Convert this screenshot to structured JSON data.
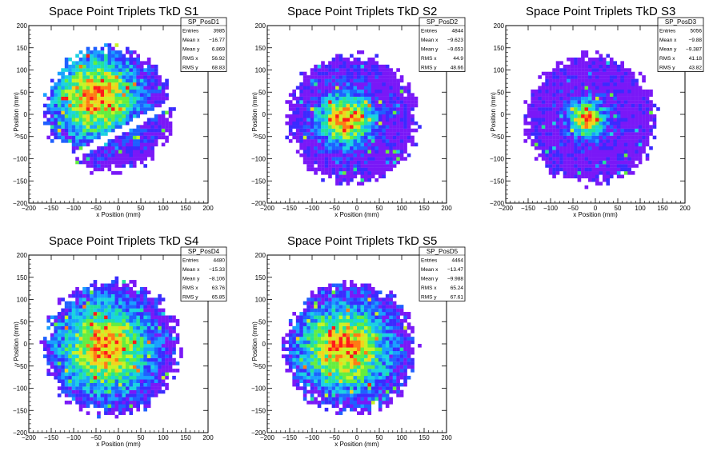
{
  "page": {
    "background": "#ffffff",
    "palette": [
      "#7a18f7",
      "#3a2bff",
      "#1f60ff",
      "#1aa0ff",
      "#1bd3e0",
      "#22e29b",
      "#63ee3f",
      "#c7f326",
      "#f1d41c",
      "#ff7a14",
      "#ff1a1a"
    ]
  },
  "chart_data": [
    {
      "type": "heatmap",
      "title": "Space Point Triplets TkD S1",
      "xlabel": "x Position (mm)",
      "ylabel": "y Position (mm)",
      "xlim": [
        -200,
        200
      ],
      "ylim": [
        -200,
        200
      ],
      "xticks": [
        "−200",
        "−150",
        "−100",
        "−50",
        "0",
        "50",
        "100",
        "150",
        "200"
      ],
      "yticks": [
        "−200",
        "−150",
        "−100",
        "−50",
        "0",
        "50",
        "100",
        "150",
        "200"
      ],
      "bin_width": 8,
      "distribution": {
        "center": [
          -20,
          10
        ],
        "radius": 150,
        "sigma": 65,
        "peak_offset": [
          -30,
          30
        ],
        "gap": "diagonal band near y = 0.55x - 40"
      },
      "stats": {
        "name": "SP_PosD1",
        "rows": [
          {
            "label": "Entries",
            "value": "3985"
          },
          {
            "label": "Mean x",
            "value": "−16.77"
          },
          {
            "label": "Mean y",
            "value": "6.869"
          },
          {
            "label": "RMS x",
            "value": "56.92"
          },
          {
            "label": "RMS y",
            "value": "68.83"
          }
        ]
      }
    },
    {
      "type": "heatmap",
      "title": "Space Point Triplets TkD S2",
      "xlabel": "x Position (mm)",
      "ylabel": "y Position (mm)",
      "xlim": [
        -200,
        200
      ],
      "ylim": [
        -200,
        200
      ],
      "xticks": [
        "−200",
        "−150",
        "−100",
        "−50",
        "0",
        "50",
        "100",
        "150",
        "200"
      ],
      "yticks": [
        "−200",
        "−150",
        "−100",
        "−50",
        "0",
        "50",
        "100",
        "150",
        "200"
      ],
      "bin_width": 8,
      "distribution": {
        "center": [
          -10,
          -10
        ],
        "radius": 155,
        "sigma": 42,
        "peak_offset": [
          -15,
          0
        ]
      },
      "stats": {
        "name": "SP_PosD2",
        "rows": [
          {
            "label": "Entries",
            "value": "4844"
          },
          {
            "label": "Mean x",
            "value": "−9.623"
          },
          {
            "label": "Mean y",
            "value": "−9.653"
          },
          {
            "label": "RMS x",
            "value": "44.9"
          },
          {
            "label": "RMS y",
            "value": "48.66"
          }
        ]
      }
    },
    {
      "type": "heatmap",
      "title": "Space Point Triplets TkD S3",
      "xlabel": "x Position (mm)",
      "ylabel": "y Position (mm)",
      "xlim": [
        -200,
        200
      ],
      "ylim": [
        -200,
        200
      ],
      "xticks": [
        "−200",
        "−150",
        "−100",
        "−50",
        "0",
        "50",
        "100",
        "150",
        "200"
      ],
      "yticks": [
        "−200",
        "−150",
        "−100",
        "−50",
        "0",
        "50",
        "100",
        "150",
        "200"
      ],
      "bin_width": 8,
      "distribution": {
        "center": [
          -10,
          -10
        ],
        "radius": 155,
        "sigma": 28,
        "peak_offset": [
          -10,
          0
        ]
      },
      "stats": {
        "name": "SP_PosD3",
        "rows": [
          {
            "label": "Entries",
            "value": "5056"
          },
          {
            "label": "Mean x",
            "value": "−9.88"
          },
          {
            "label": "Mean y",
            "value": "−9.387"
          },
          {
            "label": "RMS x",
            "value": "41.18"
          },
          {
            "label": "RMS y",
            "value": "43.82"
          }
        ]
      }
    },
    {
      "type": "heatmap",
      "title": "Space Point Triplets TkD S4",
      "xlabel": "x Position (mm)",
      "ylabel": "y Position (mm)",
      "xlim": [
        -200,
        200
      ],
      "ylim": [
        -200,
        200
      ],
      "xticks": [
        "−200",
        "−150",
        "−100",
        "−50",
        "0",
        "50",
        "100",
        "150",
        "200"
      ],
      "yticks": [
        "−200",
        "−150",
        "−100",
        "−50",
        "0",
        "50",
        "100",
        "150",
        "200"
      ],
      "bin_width": 8,
      "distribution": {
        "center": [
          -15,
          -8
        ],
        "radius": 160,
        "sigma": 70,
        "peak_offset": [
          -15,
          0
        ]
      },
      "stats": {
        "name": "SP_PosD4",
        "rows": [
          {
            "label": "Entries",
            "value": "4480"
          },
          {
            "label": "Mean x",
            "value": "−15.33"
          },
          {
            "label": "Mean y",
            "value": "−8.106"
          },
          {
            "label": "RMS x",
            "value": "63.76"
          },
          {
            "label": "RMS y",
            "value": "65.85"
          }
        ]
      }
    },
    {
      "type": "heatmap",
      "title": "Space Point Triplets TkD S5",
      "xlabel": "x Position (mm)",
      "ylabel": "y Position (mm)",
      "xlim": [
        -200,
        200
      ],
      "ylim": [
        -200,
        200
      ],
      "xticks": [
        "−200",
        "−150",
        "−100",
        "−50",
        "0",
        "50",
        "100",
        "150",
        "200"
      ],
      "yticks": [
        "−200",
        "−150",
        "−100",
        "−50",
        "0",
        "50",
        "100",
        "150",
        "200"
      ],
      "bin_width": 8,
      "distribution": {
        "center": [
          -13,
          -10
        ],
        "radius": 155,
        "sigma": 68,
        "peak_offset": [
          -15,
          0
        ]
      },
      "stats": {
        "name": "SP_PosD5",
        "rows": [
          {
            "label": "Entries",
            "value": "4464"
          },
          {
            "label": "Mean x",
            "value": "−13.47"
          },
          {
            "label": "Mean y",
            "value": "−9.988"
          },
          {
            "label": "RMS x",
            "value": "65.24"
          },
          {
            "label": "RMS y",
            "value": "67.61"
          }
        ]
      }
    }
  ]
}
